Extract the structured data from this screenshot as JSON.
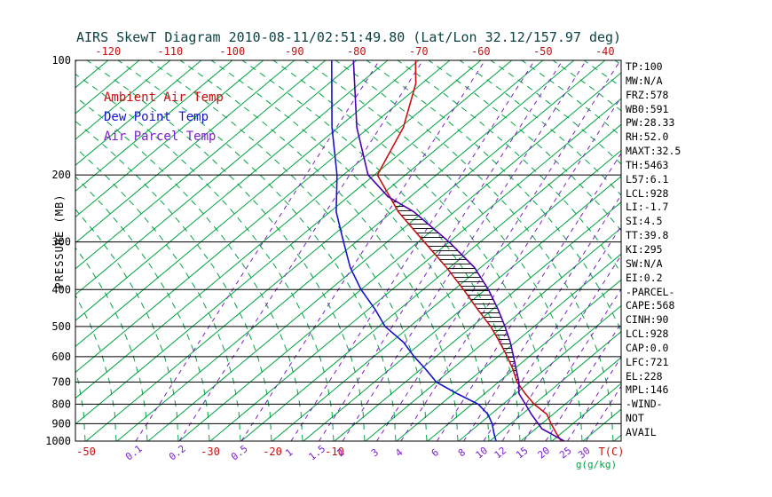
{
  "colors": {
    "red": "#c41212",
    "green": "#00a443",
    "blue": "#1414cc",
    "purple": "#7a1fcc",
    "parcel": "#4b00b0",
    "black": "#000000",
    "title": "#0d4242"
  },
  "chart_data": {
    "type": "line",
    "title": "AIRS SkewT Diagram 2010-08-11/02:51:49.80 (Lat/Lon 32.12/157.97 deg)",
    "x_axis": {
      "label": "T(C)",
      "top_ticks": [
        -120,
        -110,
        -100,
        -90,
        -80,
        -70,
        -60,
        -50,
        -40
      ],
      "bottom_ticks": [
        -50,
        -30,
        -20,
        -10
      ]
    },
    "y_axis": {
      "label": "PRESSURE (MB)",
      "scale": "log",
      "ticks": [
        100,
        200,
        300,
        400,
        500,
        600,
        700,
        800,
        900,
        1000
      ]
    },
    "mixing_ratio": {
      "label": "g(g/kg)",
      "values": [
        0.1,
        0.2,
        0.5,
        1,
        1.5,
        2,
        3,
        4,
        6,
        8,
        10,
        12,
        15,
        20,
        25,
        30
      ],
      "surface_temps": [
        -42,
        -35,
        -25,
        -17,
        -12.5,
        -8.7,
        -3.2,
        0.7,
        6.5,
        10.8,
        14,
        17,
        20.5,
        24,
        27.5,
        30.5
      ]
    },
    "series": [
      {
        "name": "Ambient Air Temp",
        "color": "#c41212",
        "pressure": [
          1000,
          950,
          900,
          850,
          800,
          750,
          700,
          650,
          600,
          550,
          500,
          450,
          400,
          350,
          300,
          250,
          200,
          150,
          115,
          100
        ],
        "temp": [
          26.5,
          24,
          21.5,
          19,
          15,
          11.5,
          8,
          5,
          1.5,
          -2.5,
          -7,
          -12.5,
          -18.5,
          -25.5,
          -34,
          -44,
          -54.5,
          -59.5,
          -66,
          -70.5
        ]
      },
      {
        "name": "Dew Point Temp",
        "color": "#1414cc",
        "pressure": [
          1000,
          950,
          900,
          850,
          800,
          750,
          700,
          650,
          600,
          550,
          500,
          450,
          400,
          350,
          300,
          250,
          200,
          150,
          100
        ],
        "temp": [
          16,
          14,
          12,
          9.5,
          6,
          0.5,
          -5,
          -9,
          -13.5,
          -18,
          -24,
          -29,
          -35,
          -41,
          -47,
          -54,
          -61,
          -71,
          -84
        ]
      },
      {
        "name": "Air Parcel Temp",
        "color": "#4b00b0",
        "pressure": [
          1000,
          928,
          850,
          800,
          750,
          700,
          650,
          600,
          550,
          500,
          450,
          400,
          350,
          300,
          250,
          228,
          200,
          150,
          100
        ],
        "temp": [
          27,
          21,
          16.5,
          13.6,
          10.5,
          8.3,
          5.5,
          2.5,
          -0.8,
          -4.7,
          -9.2,
          -14.5,
          -21,
          -30,
          -41.5,
          -48.6,
          -56,
          -67,
          -80.5
        ]
      }
    ],
    "cape_hatch": {
      "from_pressure": 721,
      "to_pressure": 228
    }
  },
  "stats_panel": {
    "lines": [
      "TP:100",
      "MW:N/A",
      "FRZ:578",
      "WB0:591",
      "PW:28.33",
      "RH:52.0",
      "MAXT:32.5",
      "TH:5463",
      "L57:6.1",
      "LCL:928",
      "LI:-1.7",
      "SI:4.5",
      "TT:39.8",
      "KI:295",
      "SW:N/A",
      "EI:0.2",
      "-PARCEL-",
      "CAPE:568",
      "CINH:90",
      "LCL:928",
      "CAP:0.0",
      "LFC:721",
      "EL:228",
      "MPL:146",
      "-WIND-",
      "NOT",
      "AVAIL"
    ]
  }
}
